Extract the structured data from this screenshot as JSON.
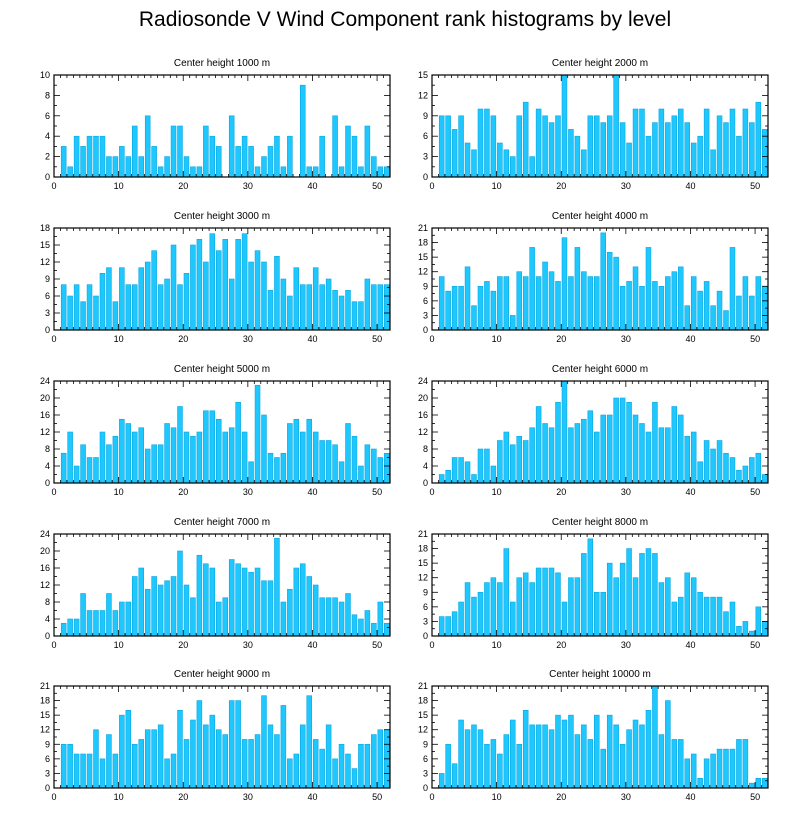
{
  "title": "Radiosonde V Wind Component rank histograms by level",
  "colors": {
    "bar": "#1ec8ff",
    "bar_stroke": "#0aa6e0",
    "axis": "#000000"
  },
  "chart_data": [
    {
      "type": "bar",
      "title": "Center height 1000 m",
      "xlabel": "",
      "ylabel": "",
      "xlim": [
        0,
        52
      ],
      "xticks": [
        0,
        10,
        20,
        30,
        40,
        50
      ],
      "ylim": [
        0,
        10
      ],
      "yticks": [
        0,
        2,
        4,
        6,
        8,
        10
      ],
      "x": [
        0,
        1,
        2,
        3,
        4,
        5,
        6,
        7,
        8,
        9,
        10,
        11,
        12,
        13,
        14,
        15,
        16,
        17,
        18,
        19,
        20,
        21,
        22,
        23,
        24,
        25,
        26,
        27,
        28,
        29,
        30,
        31,
        32,
        33,
        34,
        35,
        36,
        37,
        38,
        39,
        40,
        41,
        42,
        43,
        44,
        45,
        46,
        47,
        48,
        49,
        50,
        51
      ],
      "values": [
        0,
        3,
        1,
        4,
        3,
        4,
        4,
        4,
        2,
        2,
        3,
        2,
        5,
        2,
        6,
        3,
        1,
        2,
        5,
        5,
        2,
        1,
        1,
        5,
        4,
        3,
        0,
        6,
        3,
        4,
        3,
        1,
        2,
        3,
        4,
        1,
        4,
        0,
        9,
        1,
        1,
        4,
        0,
        6,
        1,
        5,
        4,
        1,
        5,
        2,
        1,
        1
      ]
    },
    {
      "type": "bar",
      "title": "Center height 2000 m",
      "xlabel": "",
      "ylabel": "",
      "xlim": [
        0,
        52
      ],
      "xticks": [
        0,
        10,
        20,
        30,
        40,
        50
      ],
      "ylim": [
        0,
        15
      ],
      "yticks": [
        0,
        3,
        6,
        9,
        12,
        15
      ],
      "x": [
        0,
        1,
        2,
        3,
        4,
        5,
        6,
        7,
        8,
        9,
        10,
        11,
        12,
        13,
        14,
        15,
        16,
        17,
        18,
        19,
        20,
        21,
        22,
        23,
        24,
        25,
        26,
        27,
        28,
        29,
        30,
        31,
        32,
        33,
        34,
        35,
        36,
        37,
        38,
        39,
        40,
        41,
        42,
        43,
        44,
        45,
        46,
        47,
        48,
        49,
        50,
        51
      ],
      "values": [
        0,
        9,
        9,
        7,
        9,
        5,
        4,
        10,
        10,
        9,
        5,
        4,
        3,
        9,
        11,
        3,
        10,
        9,
        8,
        9,
        15,
        7,
        6,
        4,
        9,
        9,
        8,
        9,
        15,
        8,
        5,
        10,
        10,
        6,
        8,
        10,
        8,
        9,
        10,
        8,
        5,
        6,
        10,
        4,
        9,
        8,
        10,
        6,
        10,
        8,
        11,
        7
      ]
    },
    {
      "type": "bar",
      "title": "Center height 3000 m",
      "xlabel": "",
      "ylabel": "",
      "xlim": [
        0,
        52
      ],
      "xticks": [
        0,
        10,
        20,
        30,
        40,
        50
      ],
      "ylim": [
        0,
        18
      ],
      "yticks": [
        0,
        3,
        6,
        9,
        12,
        15,
        18
      ],
      "x": [
        0,
        1,
        2,
        3,
        4,
        5,
        6,
        7,
        8,
        9,
        10,
        11,
        12,
        13,
        14,
        15,
        16,
        17,
        18,
        19,
        20,
        21,
        22,
        23,
        24,
        25,
        26,
        27,
        28,
        29,
        30,
        31,
        32,
        33,
        34,
        35,
        36,
        37,
        38,
        39,
        40,
        41,
        42,
        43,
        44,
        45,
        46,
        47,
        48,
        49,
        50,
        51
      ],
      "values": [
        0,
        8,
        6,
        8,
        5,
        8,
        6,
        10,
        11,
        5,
        11,
        8,
        8,
        11,
        12,
        14,
        8,
        9,
        15,
        8,
        10,
        15,
        16,
        12,
        17,
        14,
        16,
        9,
        16,
        17,
        12,
        14,
        12,
        7,
        13,
        9,
        6,
        11,
        8,
        8,
        11,
        8,
        9,
        7,
        6,
        7,
        5,
        5,
        9,
        8,
        8,
        8
      ]
    },
    {
      "type": "bar",
      "title": "Center height 4000 m",
      "xlabel": "",
      "ylabel": "",
      "xlim": [
        0,
        52
      ],
      "xticks": [
        0,
        10,
        20,
        30,
        40,
        50
      ],
      "ylim": [
        0,
        21
      ],
      "yticks": [
        0,
        3,
        6,
        9,
        12,
        15,
        18,
        21
      ],
      "x": [
        0,
        1,
        2,
        3,
        4,
        5,
        6,
        7,
        8,
        9,
        10,
        11,
        12,
        13,
        14,
        15,
        16,
        17,
        18,
        19,
        20,
        21,
        22,
        23,
        24,
        25,
        26,
        27,
        28,
        29,
        30,
        31,
        32,
        33,
        34,
        35,
        36,
        37,
        38,
        39,
        40,
        41,
        42,
        43,
        44,
        45,
        46,
        47,
        48,
        49,
        50,
        51
      ],
      "values": [
        0,
        11,
        8,
        9,
        9,
        13,
        5,
        9,
        10,
        8,
        11,
        11,
        3,
        12,
        11,
        17,
        11,
        14,
        12,
        10,
        19,
        11,
        17,
        12,
        11,
        11,
        20,
        16,
        15,
        9,
        10,
        13,
        9,
        17,
        10,
        9,
        11,
        12,
        13,
        5,
        11,
        8,
        10,
        5,
        8,
        4,
        17,
        7,
        11,
        7,
        11,
        9
      ]
    },
    {
      "type": "bar",
      "title": "Center height 5000 m",
      "xlabel": "",
      "ylabel": "",
      "xlim": [
        0,
        52
      ],
      "xticks": [
        0,
        10,
        20,
        30,
        40,
        50
      ],
      "ylim": [
        0,
        24
      ],
      "yticks": [
        0,
        4,
        8,
        12,
        16,
        20,
        24
      ],
      "x": [
        0,
        1,
        2,
        3,
        4,
        5,
        6,
        7,
        8,
        9,
        10,
        11,
        12,
        13,
        14,
        15,
        16,
        17,
        18,
        19,
        20,
        21,
        22,
        23,
        24,
        25,
        26,
        27,
        28,
        29,
        30,
        31,
        32,
        33,
        34,
        35,
        36,
        37,
        38,
        39,
        40,
        41,
        42,
        43,
        44,
        45,
        46,
        47,
        48,
        49,
        50,
        51
      ],
      "values": [
        0,
        7,
        12,
        4,
        9,
        6,
        6,
        12,
        9,
        11,
        15,
        14,
        12,
        13,
        8,
        9,
        9,
        14,
        13,
        18,
        12,
        11,
        12,
        17,
        17,
        15,
        12,
        13,
        19,
        12,
        5,
        23,
        16,
        7,
        6,
        7,
        14,
        15,
        12,
        15,
        12,
        10,
        10,
        9,
        5,
        14,
        11,
        4,
        9,
        8,
        6,
        7
      ]
    },
    {
      "type": "bar",
      "title": "Center height 6000 m",
      "xlabel": "",
      "ylabel": "",
      "xlim": [
        0,
        52
      ],
      "xticks": [
        0,
        10,
        20,
        30,
        40,
        50
      ],
      "ylim": [
        0,
        24
      ],
      "yticks": [
        0,
        4,
        8,
        12,
        16,
        20,
        24
      ],
      "x": [
        0,
        1,
        2,
        3,
        4,
        5,
        6,
        7,
        8,
        9,
        10,
        11,
        12,
        13,
        14,
        15,
        16,
        17,
        18,
        19,
        20,
        21,
        22,
        23,
        24,
        25,
        26,
        27,
        28,
        29,
        30,
        31,
        32,
        33,
        34,
        35,
        36,
        37,
        38,
        39,
        40,
        41,
        42,
        43,
        44,
        45,
        46,
        47,
        48,
        49,
        50,
        51
      ],
      "values": [
        0,
        2,
        3,
        6,
        6,
        5,
        2,
        8,
        8,
        4,
        10,
        12,
        9,
        11,
        10,
        13,
        18,
        14,
        13,
        19,
        24,
        13,
        14,
        15,
        17,
        12,
        16,
        16,
        20,
        20,
        19,
        16,
        14,
        12,
        19,
        13,
        13,
        18,
        16,
        11,
        12,
        5,
        10,
        8,
        10,
        7,
        6,
        3,
        4,
        6,
        7,
        2
      ]
    },
    {
      "type": "bar",
      "title": "Center height 7000 m",
      "xlabel": "",
      "ylabel": "",
      "xlim": [
        0,
        52
      ],
      "xticks": [
        0,
        10,
        20,
        30,
        40,
        50
      ],
      "ylim": [
        0,
        24
      ],
      "yticks": [
        0,
        4,
        8,
        12,
        16,
        20,
        24
      ],
      "x": [
        0,
        1,
        2,
        3,
        4,
        5,
        6,
        7,
        8,
        9,
        10,
        11,
        12,
        13,
        14,
        15,
        16,
        17,
        18,
        19,
        20,
        21,
        22,
        23,
        24,
        25,
        26,
        27,
        28,
        29,
        30,
        31,
        32,
        33,
        34,
        35,
        36,
        37,
        38,
        39,
        40,
        41,
        42,
        43,
        44,
        45,
        46,
        47,
        48,
        49,
        50,
        51
      ],
      "values": [
        0,
        3,
        4,
        4,
        10,
        6,
        6,
        6,
        10,
        6,
        8,
        8,
        14,
        16,
        11,
        14,
        12,
        13,
        14,
        20,
        12,
        9,
        19,
        17,
        16,
        8,
        9,
        18,
        17,
        16,
        15,
        16,
        13,
        13,
        23,
        8,
        11,
        16,
        17,
        14,
        12,
        9,
        9,
        9,
        8,
        10,
        5,
        4,
        6,
        3,
        8,
        3
      ]
    },
    {
      "type": "bar",
      "title": "Center height 8000 m",
      "xlabel": "",
      "ylabel": "",
      "xlim": [
        0,
        52
      ],
      "xticks": [
        0,
        10,
        20,
        30,
        40,
        50
      ],
      "ylim": [
        0,
        21
      ],
      "yticks": [
        0,
        3,
        6,
        9,
        12,
        15,
        18,
        21
      ],
      "x": [
        0,
        1,
        2,
        3,
        4,
        5,
        6,
        7,
        8,
        9,
        10,
        11,
        12,
        13,
        14,
        15,
        16,
        17,
        18,
        19,
        20,
        21,
        22,
        23,
        24,
        25,
        26,
        27,
        28,
        29,
        30,
        31,
        32,
        33,
        34,
        35,
        36,
        37,
        38,
        39,
        40,
        41,
        42,
        43,
        44,
        45,
        46,
        47,
        48,
        49,
        50,
        51
      ],
      "values": [
        0,
        4,
        4,
        5,
        7,
        11,
        8,
        9,
        11,
        12,
        11,
        18,
        7,
        12,
        13,
        11,
        14,
        14,
        14,
        13,
        7,
        12,
        12,
        17,
        20,
        9,
        9,
        15,
        12,
        15,
        18,
        12,
        17,
        18,
        17,
        11,
        12,
        7,
        8,
        13,
        12,
        9,
        8,
        8,
        8,
        5,
        7,
        2,
        3,
        1,
        6,
        3
      ]
    },
    {
      "type": "bar",
      "title": "Center height 9000 m",
      "xlabel": "",
      "ylabel": "",
      "xlim": [
        0,
        52
      ],
      "xticks": [
        0,
        10,
        20,
        30,
        40,
        50
      ],
      "ylim": [
        0,
        21
      ],
      "yticks": [
        0,
        3,
        6,
        9,
        12,
        15,
        18,
        21
      ],
      "x": [
        0,
        1,
        2,
        3,
        4,
        5,
        6,
        7,
        8,
        9,
        10,
        11,
        12,
        13,
        14,
        15,
        16,
        17,
        18,
        19,
        20,
        21,
        22,
        23,
        24,
        25,
        26,
        27,
        28,
        29,
        30,
        31,
        32,
        33,
        34,
        35,
        36,
        37,
        38,
        39,
        40,
        41,
        42,
        43,
        44,
        45,
        46,
        47,
        48,
        49,
        50,
        51
      ],
      "values": [
        0,
        9,
        9,
        7,
        7,
        7,
        12,
        6,
        11,
        7,
        15,
        16,
        9,
        10,
        12,
        12,
        13,
        6,
        7,
        16,
        10,
        14,
        18,
        13,
        15,
        12,
        11,
        18,
        18,
        10,
        10,
        11,
        19,
        13,
        11,
        17,
        6,
        7,
        13,
        19,
        10,
        8,
        13,
        6,
        9,
        7,
        4,
        9,
        9,
        11,
        12,
        12
      ]
    },
    {
      "type": "bar",
      "title": "Center height 10000 m",
      "xlabel": "",
      "ylabel": "",
      "xlim": [
        0,
        52
      ],
      "xticks": [
        0,
        10,
        20,
        30,
        40,
        50
      ],
      "ylim": [
        0,
        21
      ],
      "yticks": [
        0,
        3,
        6,
        9,
        12,
        15,
        18,
        21
      ],
      "x": [
        0,
        1,
        2,
        3,
        4,
        5,
        6,
        7,
        8,
        9,
        10,
        11,
        12,
        13,
        14,
        15,
        16,
        17,
        18,
        19,
        20,
        21,
        22,
        23,
        24,
        25,
        26,
        27,
        28,
        29,
        30,
        31,
        32,
        33,
        34,
        35,
        36,
        37,
        38,
        39,
        40,
        41,
        42,
        43,
        44,
        45,
        46,
        47,
        48,
        49,
        50,
        51
      ],
      "values": [
        0,
        3,
        9,
        5,
        14,
        12,
        13,
        12,
        9,
        10,
        7,
        11,
        14,
        9,
        16,
        13,
        13,
        13,
        12,
        15,
        14,
        15,
        11,
        13,
        10,
        15,
        8,
        15,
        13,
        9,
        12,
        14,
        13,
        16,
        21,
        11,
        18,
        10,
        10,
        6,
        7,
        2,
        6,
        7,
        8,
        8,
        8,
        10,
        10,
        1,
        2,
        2
      ]
    }
  ]
}
